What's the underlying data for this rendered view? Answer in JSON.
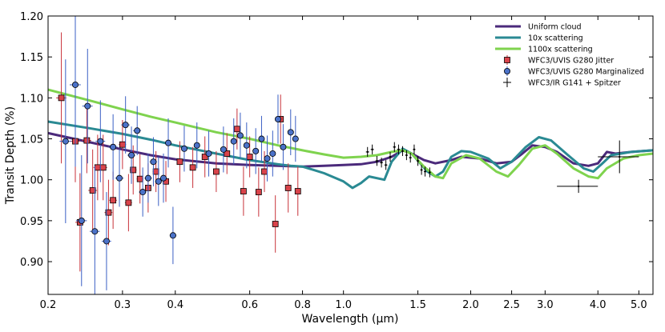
{
  "chart_data": {
    "type": "line+scatter",
    "xscale": "log",
    "xlabel": "Wavelength (μm)",
    "ylabel": "Transit Depth (%)",
    "xlim": [
      0.2,
      5.4
    ],
    "ylim": [
      0.86,
      1.2
    ],
    "x_ticks": [
      0.2,
      0.3,
      0.4,
      0.6,
      0.8,
      1.0,
      1.5,
      2.0,
      2.5,
      3.0,
      4.0,
      5.0
    ],
    "x_tick_labels": [
      "0.2",
      "0.3",
      "0.4",
      "0.6",
      "0.8",
      "1.0",
      "1.5",
      "2.0",
      "2.5",
      "3.0",
      "4.0",
      "5.0"
    ],
    "y_ticks": [
      0.9,
      0.95,
      1.0,
      1.05,
      1.1,
      1.15,
      1.2
    ],
    "y_tick_labels": [
      "0.90",
      "0.95",
      "1.00",
      "1.05",
      "1.10",
      "1.15",
      "1.20"
    ],
    "legend_position": "top-right",
    "models": [
      {
        "name": "Uniform cloud",
        "color": "#4b2a7b",
        "points": [
          [
            0.2,
            1.057
          ],
          [
            0.25,
            1.046
          ],
          [
            0.3,
            1.037
          ],
          [
            0.35,
            1.03
          ],
          [
            0.4,
            1.025
          ],
          [
            0.5,
            1.02
          ],
          [
            0.6,
            1.018
          ],
          [
            0.7,
            1.017
          ],
          [
            0.8,
            1.016
          ],
          [
            0.9,
            1.017
          ],
          [
            1.0,
            1.018
          ],
          [
            1.1,
            1.019
          ],
          [
            1.2,
            1.022
          ],
          [
            1.3,
            1.028
          ],
          [
            1.38,
            1.036
          ],
          [
            1.45,
            1.032
          ],
          [
            1.55,
            1.024
          ],
          [
            1.65,
            1.02
          ],
          [
            1.8,
            1.024
          ],
          [
            1.9,
            1.028
          ],
          [
            2.1,
            1.026
          ],
          [
            2.3,
            1.02
          ],
          [
            2.5,
            1.022
          ],
          [
            2.65,
            1.032
          ],
          [
            2.8,
            1.042
          ],
          [
            3.0,
            1.04
          ],
          [
            3.2,
            1.034
          ],
          [
            3.5,
            1.02
          ],
          [
            3.8,
            1.017
          ],
          [
            4.0,
            1.02
          ],
          [
            4.2,
            1.034
          ],
          [
            4.4,
            1.032
          ],
          [
            4.8,
            1.034
          ],
          [
            5.4,
            1.036
          ]
        ]
      },
      {
        "name": "10x scattering",
        "color": "#2a8a93",
        "points": [
          [
            0.2,
            1.071
          ],
          [
            0.25,
            1.063
          ],
          [
            0.3,
            1.056
          ],
          [
            0.35,
            1.049
          ],
          [
            0.4,
            1.042
          ],
          [
            0.5,
            1.032
          ],
          [
            0.6,
            1.024
          ],
          [
            0.7,
            1.019
          ],
          [
            0.75,
            1.017
          ],
          [
            0.8,
            1.016
          ],
          [
            0.85,
            1.012
          ],
          [
            0.9,
            1.008
          ],
          [
            1.0,
            0.998
          ],
          [
            1.05,
            0.99
          ],
          [
            1.1,
            0.996
          ],
          [
            1.15,
            1.004
          ],
          [
            1.25,
            1.0
          ],
          [
            1.3,
            1.022
          ],
          [
            1.38,
            1.038
          ],
          [
            1.45,
            1.032
          ],
          [
            1.52,
            1.02
          ],
          [
            1.58,
            1.01
          ],
          [
            1.65,
            1.004
          ],
          [
            1.72,
            1.01
          ],
          [
            1.8,
            1.028
          ],
          [
            1.9,
            1.035
          ],
          [
            2.0,
            1.034
          ],
          [
            2.2,
            1.026
          ],
          [
            2.35,
            1.014
          ],
          [
            2.5,
            1.022
          ],
          [
            2.7,
            1.04
          ],
          [
            2.9,
            1.052
          ],
          [
            3.1,
            1.048
          ],
          [
            3.4,
            1.03
          ],
          [
            3.7,
            1.014
          ],
          [
            3.9,
            1.01
          ],
          [
            4.1,
            1.02
          ],
          [
            4.3,
            1.03
          ],
          [
            4.8,
            1.034
          ],
          [
            5.4,
            1.036
          ]
        ]
      },
      {
        "name": "1100x scattering",
        "color": "#7fd34e",
        "points": [
          [
            0.2,
            1.11
          ],
          [
            0.25,
            1.097
          ],
          [
            0.3,
            1.086
          ],
          [
            0.35,
            1.077
          ],
          [
            0.4,
            1.07
          ],
          [
            0.5,
            1.058
          ],
          [
            0.6,
            1.05
          ],
          [
            0.7,
            1.042
          ],
          [
            0.8,
            1.036
          ],
          [
            0.9,
            1.031
          ],
          [
            1.0,
            1.027
          ],
          [
            1.1,
            1.028
          ],
          [
            1.2,
            1.03
          ],
          [
            1.3,
            1.034
          ],
          [
            1.38,
            1.036
          ],
          [
            1.45,
            1.032
          ],
          [
            1.55,
            1.016
          ],
          [
            1.65,
            1.004
          ],
          [
            1.72,
            1.002
          ],
          [
            1.8,
            1.02
          ],
          [
            1.95,
            1.03
          ],
          [
            2.1,
            1.026
          ],
          [
            2.3,
            1.01
          ],
          [
            2.45,
            1.004
          ],
          [
            2.6,
            1.018
          ],
          [
            2.8,
            1.038
          ],
          [
            3.0,
            1.042
          ],
          [
            3.2,
            1.032
          ],
          [
            3.5,
            1.014
          ],
          [
            3.8,
            1.004
          ],
          [
            4.0,
            1.002
          ],
          [
            4.2,
            1.014
          ],
          [
            4.6,
            1.026
          ],
          [
            5.0,
            1.03
          ],
          [
            5.4,
            1.032
          ]
        ]
      }
    ],
    "datasets": [
      {
        "name": "WFC3/UVIS G280 Jitter",
        "marker": "square",
        "face_color": "#d9434a",
        "error_color": "#c8323a",
        "points": [
          {
            "x": 0.215,
            "y": 1.1,
            "yerr": 0.08,
            "xerr": 0.006
          },
          {
            "x": 0.232,
            "y": 1.047,
            "yerr": 0.05,
            "xerr": 0.006
          },
          {
            "x": 0.238,
            "y": 0.948,
            "yerr": 0.06,
            "xerr": 0.006
          },
          {
            "x": 0.247,
            "y": 1.048,
            "yerr": 0.04,
            "xerr": 0.006
          },
          {
            "x": 0.255,
            "y": 0.987,
            "yerr": 0.05,
            "xerr": 0.006
          },
          {
            "x": 0.262,
            "y": 1.015,
            "yerr": 0.04,
            "xerr": 0.006
          },
          {
            "x": 0.27,
            "y": 1.015,
            "yerr": 0.04,
            "xerr": 0.006
          },
          {
            "x": 0.278,
            "y": 0.96,
            "yerr": 0.04,
            "xerr": 0.006
          },
          {
            "x": 0.285,
            "y": 0.975,
            "yerr": 0.035,
            "xerr": 0.006
          },
          {
            "x": 0.3,
            "y": 1.043,
            "yerr": 0.03,
            "xerr": 0.006
          },
          {
            "x": 0.31,
            "y": 0.972,
            "yerr": 0.035,
            "xerr": 0.006
          },
          {
            "x": 0.318,
            "y": 1.012,
            "yerr": 0.03,
            "xerr": 0.006
          },
          {
            "x": 0.33,
            "y": 1.001,
            "yerr": 0.03,
            "xerr": 0.006
          },
          {
            "x": 0.345,
            "y": 0.99,
            "yerr": 0.03,
            "xerr": 0.006
          },
          {
            "x": 0.36,
            "y": 1.01,
            "yerr": 0.025,
            "xerr": 0.006
          },
          {
            "x": 0.38,
            "y": 0.998,
            "yerr": 0.025,
            "xerr": 0.006
          },
          {
            "x": 0.41,
            "y": 1.022,
            "yerr": 0.025,
            "xerr": 0.006
          },
          {
            "x": 0.44,
            "y": 1.015,
            "yerr": 0.025,
            "xerr": 0.006
          },
          {
            "x": 0.47,
            "y": 1.028,
            "yerr": 0.025,
            "xerr": 0.006
          },
          {
            "x": 0.5,
            "y": 1.01,
            "yerr": 0.025,
            "xerr": 0.006
          },
          {
            "x": 0.53,
            "y": 1.032,
            "yerr": 0.025,
            "xerr": 0.006
          },
          {
            "x": 0.56,
            "y": 1.062,
            "yerr": 0.025,
            "xerr": 0.006
          },
          {
            "x": 0.58,
            "y": 0.986,
            "yerr": 0.03,
            "xerr": 0.006
          },
          {
            "x": 0.6,
            "y": 1.028,
            "yerr": 0.025,
            "xerr": 0.006
          },
          {
            "x": 0.63,
            "y": 0.985,
            "yerr": 0.03,
            "xerr": 0.006
          },
          {
            "x": 0.65,
            "y": 1.01,
            "yerr": 0.025,
            "xerr": 0.006
          },
          {
            "x": 0.69,
            "y": 0.946,
            "yerr": 0.035,
            "xerr": 0.006
          },
          {
            "x": 0.71,
            "y": 1.074,
            "yerr": 0.03,
            "xerr": 0.006
          },
          {
            "x": 0.74,
            "y": 0.99,
            "yerr": 0.03,
            "xerr": 0.006
          },
          {
            "x": 0.78,
            "y": 0.986,
            "yerr": 0.03,
            "xerr": 0.006
          }
        ]
      },
      {
        "name": "WFC3/UVIS G280 Marginalized",
        "marker": "circle",
        "face_color": "#4b72c9",
        "error_color": "#3a5fc4",
        "points": [
          {
            "x": 0.22,
            "y": 1.047,
            "yerr": 0.1,
            "xerr": 0.007
          },
          {
            "x": 0.232,
            "y": 1.116,
            "yerr": 0.1,
            "xerr": 0.007
          },
          {
            "x": 0.24,
            "y": 0.95,
            "yerr": 0.08,
            "xerr": 0.007
          },
          {
            "x": 0.248,
            "y": 1.09,
            "yerr": 0.07,
            "xerr": 0.007
          },
          {
            "x": 0.258,
            "y": 0.937,
            "yerr": 0.08,
            "xerr": 0.007
          },
          {
            "x": 0.266,
            "y": 1.047,
            "yerr": 0.05,
            "xerr": 0.007
          },
          {
            "x": 0.275,
            "y": 0.925,
            "yerr": 0.06,
            "xerr": 0.007
          },
          {
            "x": 0.285,
            "y": 1.04,
            "yerr": 0.04,
            "xerr": 0.007
          },
          {
            "x": 0.295,
            "y": 1.002,
            "yerr": 0.035,
            "xerr": 0.007
          },
          {
            "x": 0.305,
            "y": 1.067,
            "yerr": 0.035,
            "xerr": 0.007
          },
          {
            "x": 0.315,
            "y": 1.03,
            "yerr": 0.035,
            "xerr": 0.007
          },
          {
            "x": 0.325,
            "y": 1.06,
            "yerr": 0.03,
            "xerr": 0.007
          },
          {
            "x": 0.335,
            "y": 0.985,
            "yerr": 0.03,
            "xerr": 0.007
          },
          {
            "x": 0.345,
            "y": 1.002,
            "yerr": 0.03,
            "xerr": 0.007
          },
          {
            "x": 0.355,
            "y": 1.022,
            "yerr": 0.03,
            "xerr": 0.007
          },
          {
            "x": 0.365,
            "y": 0.998,
            "yerr": 0.03,
            "xerr": 0.007
          },
          {
            "x": 0.375,
            "y": 1.002,
            "yerr": 0.03,
            "xerr": 0.007
          },
          {
            "x": 0.385,
            "y": 1.045,
            "yerr": 0.03,
            "xerr": 0.007
          },
          {
            "x": 0.395,
            "y": 0.932,
            "yerr": 0.035,
            "xerr": 0.007
          },
          {
            "x": 0.42,
            "y": 1.038,
            "yerr": 0.028,
            "xerr": 0.007
          },
          {
            "x": 0.45,
            "y": 1.042,
            "yerr": 0.028,
            "xerr": 0.007
          },
          {
            "x": 0.48,
            "y": 1.032,
            "yerr": 0.028,
            "xerr": 0.007
          },
          {
            "x": 0.52,
            "y": 1.037,
            "yerr": 0.028,
            "xerr": 0.007
          },
          {
            "x": 0.55,
            "y": 1.047,
            "yerr": 0.028,
            "xerr": 0.007
          },
          {
            "x": 0.57,
            "y": 1.054,
            "yerr": 0.028,
            "xerr": 0.007
          },
          {
            "x": 0.59,
            "y": 1.042,
            "yerr": 0.028,
            "xerr": 0.007
          },
          {
            "x": 0.62,
            "y": 1.035,
            "yerr": 0.028,
            "xerr": 0.007
          },
          {
            "x": 0.64,
            "y": 1.05,
            "yerr": 0.028,
            "xerr": 0.007
          },
          {
            "x": 0.66,
            "y": 1.026,
            "yerr": 0.028,
            "xerr": 0.007
          },
          {
            "x": 0.68,
            "y": 1.032,
            "yerr": 0.028,
            "xerr": 0.007
          },
          {
            "x": 0.7,
            "y": 1.074,
            "yerr": 0.03,
            "xerr": 0.007
          },
          {
            "x": 0.72,
            "y": 1.04,
            "yerr": 0.028,
            "xerr": 0.007
          },
          {
            "x": 0.75,
            "y": 1.058,
            "yerr": 0.028,
            "xerr": 0.007
          },
          {
            "x": 0.77,
            "y": 1.05,
            "yerr": 0.028,
            "xerr": 0.007
          }
        ]
      },
      {
        "name": "WFC3/IR G141 + Spitzer",
        "marker": "none",
        "face_color": "#000000",
        "error_color": "#000000",
        "points": [
          {
            "x": 1.14,
            "y": 1.034,
            "yerr": 0.006,
            "xerr": 0.01
          },
          {
            "x": 1.17,
            "y": 1.037,
            "yerr": 0.006,
            "xerr": 0.01
          },
          {
            "x": 1.2,
            "y": 1.023,
            "yerr": 0.006,
            "xerr": 0.01
          },
          {
            "x": 1.23,
            "y": 1.021,
            "yerr": 0.006,
            "xerr": 0.01
          },
          {
            "x": 1.26,
            "y": 1.018,
            "yerr": 0.006,
            "xerr": 0.01
          },
          {
            "x": 1.29,
            "y": 1.028,
            "yerr": 0.006,
            "xerr": 0.01
          },
          {
            "x": 1.32,
            "y": 1.04,
            "yerr": 0.006,
            "xerr": 0.01
          },
          {
            "x": 1.35,
            "y": 1.037,
            "yerr": 0.006,
            "xerr": 0.01
          },
          {
            "x": 1.38,
            "y": 1.035,
            "yerr": 0.006,
            "xerr": 0.01
          },
          {
            "x": 1.41,
            "y": 1.03,
            "yerr": 0.006,
            "xerr": 0.01
          },
          {
            "x": 1.44,
            "y": 1.027,
            "yerr": 0.006,
            "xerr": 0.01
          },
          {
            "x": 1.47,
            "y": 1.037,
            "yerr": 0.006,
            "xerr": 0.01
          },
          {
            "x": 1.5,
            "y": 1.023,
            "yerr": 0.006,
            "xerr": 0.01
          },
          {
            "x": 1.53,
            "y": 1.012,
            "yerr": 0.006,
            "xerr": 0.01
          },
          {
            "x": 1.56,
            "y": 1.01,
            "yerr": 0.006,
            "xerr": 0.01
          },
          {
            "x": 1.6,
            "y": 1.009,
            "yerr": 0.006,
            "xerr": 0.01
          },
          {
            "x": 3.6,
            "y": 0.992,
            "yerr": 0.008,
            "xerr": 0.4
          },
          {
            "x": 4.5,
            "y": 1.028,
            "yerr": 0.02,
            "xerr": 0.5
          }
        ]
      }
    ]
  }
}
